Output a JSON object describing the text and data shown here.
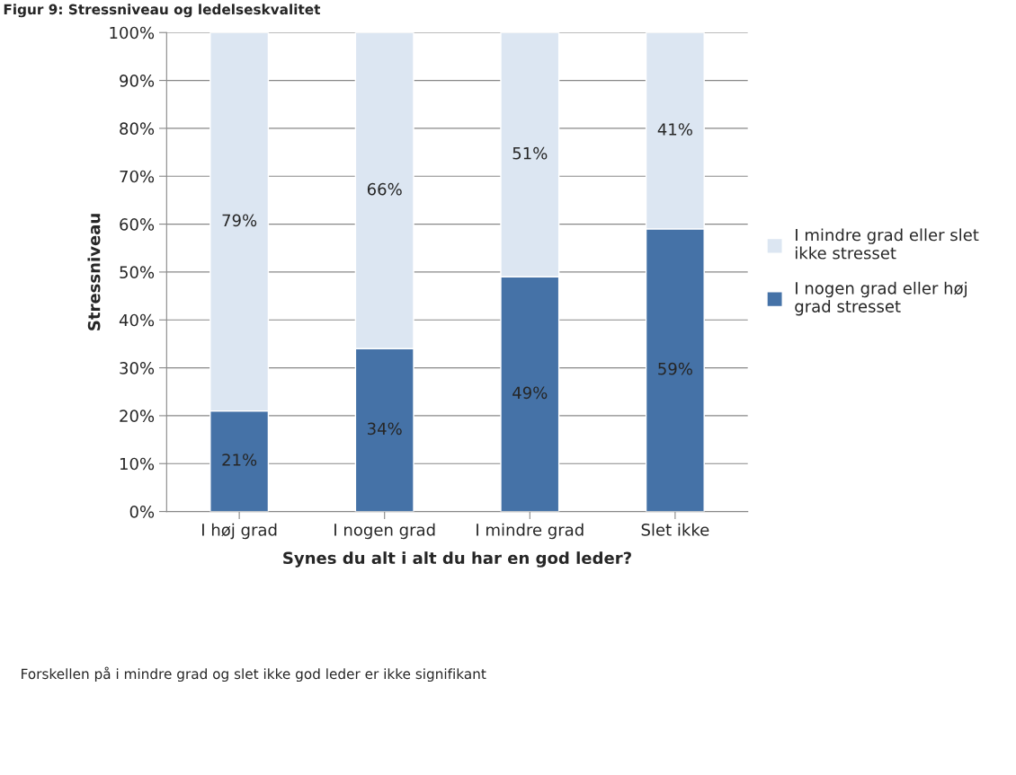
{
  "chart_data": {
    "type": "bar",
    "stacked": true,
    "title": "Figur 9: Stressniveau og ledelseskvalitet",
    "xlabel": "Synes du alt i alt du har en god leder?",
    "ylabel": "Stressniveau",
    "categories": [
      "I høj grad",
      "I nogen grad",
      "I mindre grad",
      "Slet ikke"
    ],
    "series": [
      {
        "name": "I nogen grad eller høj grad stresset",
        "color": "#4572a7",
        "values": [
          21,
          34,
          49,
          59
        ],
        "value_labels": [
          "21%",
          "34%",
          "49%",
          "59%"
        ]
      },
      {
        "name": "I mindre grad eller slet ikke stresset",
        "color": "#dce6f2",
        "values": [
          79,
          66,
          51,
          41
        ],
        "value_labels": [
          "79%",
          "66%",
          "51%",
          "41%"
        ]
      }
    ],
    "ylim": [
      0,
      100
    ],
    "yticks": [
      {
        "value": 0,
        "label": "0%"
      },
      {
        "value": 10,
        "label": "10%"
      },
      {
        "value": 20,
        "label": "20%"
      },
      {
        "value": 30,
        "label": "30%"
      },
      {
        "value": 40,
        "label": "40%"
      },
      {
        "value": 50,
        "label": "50%"
      },
      {
        "value": 60,
        "label": "60%"
      },
      {
        "value": 70,
        "label": "70%"
      },
      {
        "value": 80,
        "label": "80%"
      },
      {
        "value": 90,
        "label": "90%"
      },
      {
        "value": 100,
        "label": "100%"
      }
    ],
    "grid": "y",
    "legend": "right",
    "annotations": [
      "Forskellen på i mindre grad og slet ikke god leder er ikke signifikant"
    ]
  }
}
